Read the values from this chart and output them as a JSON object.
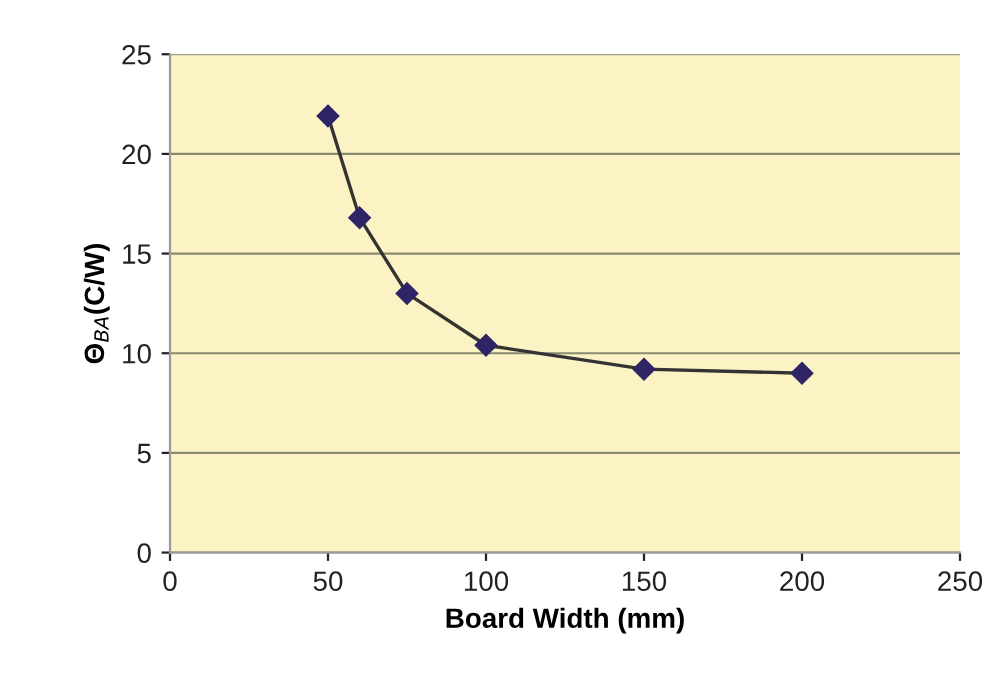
{
  "chart_data": {
    "type": "line",
    "xlabel": "Board Width (mm)",
    "ylabel": "Θ$_{BA}$(C/W)",
    "x": [
      50,
      60,
      75,
      100,
      150,
      200
    ],
    "series": [
      {
        "color": "#2e2466",
        "values": [
          21.9,
          16.8,
          13.0,
          10.4,
          9.2,
          9.0
        ]
      }
    ],
    "xlim": [
      0,
      250
    ],
    "xticks": [
      0,
      50,
      100,
      150,
      200,
      250
    ],
    "ylim": [
      0,
      25
    ],
    "yticks": [
      0,
      5,
      10,
      15,
      20,
      25
    ],
    "grid": "y",
    "marker": "diamond",
    "line_style": "solid",
    "legend": false
  }
}
